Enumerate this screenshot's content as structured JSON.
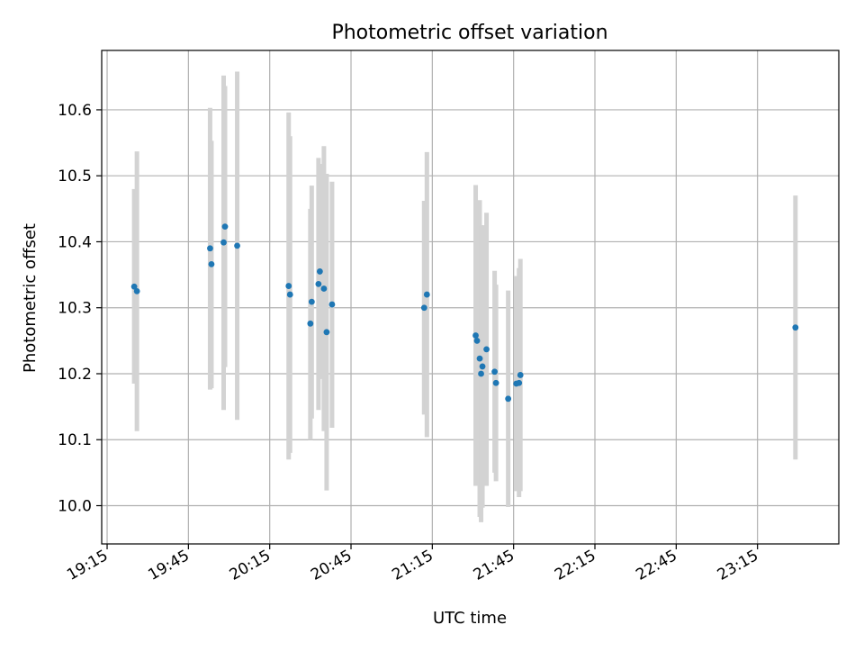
{
  "chart_data": {
    "type": "scatter",
    "title": "Photometric offset variation",
    "xlabel": "UTC time",
    "ylabel": "Photometric offset",
    "x_is_time": true,
    "xlim": [
      "19:13",
      "23:45"
    ],
    "ylim": [
      9.942,
      10.69
    ],
    "x_ticks": [
      "19:15",
      "19:45",
      "20:15",
      "20:45",
      "21:15",
      "21:45",
      "22:15",
      "22:45",
      "23:15"
    ],
    "y_ticks": [
      10.0,
      10.1,
      10.2,
      10.3,
      10.4,
      10.5,
      10.6
    ],
    "grid": true,
    "points": [
      {
        "x": "19:25",
        "y": 10.332,
        "err_low": 10.185,
        "err_high": 10.48
      },
      {
        "x": "19:26",
        "y": 10.325,
        "err_low": 10.113,
        "err_high": 10.537
      },
      {
        "x": "19:53",
        "y": 10.39,
        "err_low": 10.176,
        "err_high": 10.603
      },
      {
        "x": "19:53.5",
        "y": 10.366,
        "err_low": 10.178,
        "err_high": 10.553
      },
      {
        "x": "19:58",
        "y": 10.399,
        "err_low": 10.145,
        "err_high": 10.652
      },
      {
        "x": "19:58.5",
        "y": 10.423,
        "err_low": 10.21,
        "err_high": 10.636
      },
      {
        "x": "20:03",
        "y": 10.394,
        "err_low": 10.13,
        "err_high": 10.658
      },
      {
        "x": "20:22",
        "y": 10.333,
        "err_low": 10.07,
        "err_high": 10.596
      },
      {
        "x": "20:22.5",
        "y": 10.32,
        "err_low": 10.08,
        "err_high": 10.56
      },
      {
        "x": "20:30",
        "y": 10.276,
        "err_low": 10.1,
        "err_high": 10.45
      },
      {
        "x": "20:30.5",
        "y": 10.309,
        "err_low": 10.132,
        "err_high": 10.485
      },
      {
        "x": "20:33",
        "y": 10.336,
        "err_low": 10.145,
        "err_high": 10.527
      },
      {
        "x": "20:33.5",
        "y": 10.355,
        "err_low": 10.192,
        "err_high": 10.518
      },
      {
        "x": "20:35",
        "y": 10.329,
        "err_low": 10.113,
        "err_high": 10.545
      },
      {
        "x": "20:36",
        "y": 10.263,
        "err_low": 10.023,
        "err_high": 10.503
      },
      {
        "x": "20:38",
        "y": 10.305,
        "err_low": 10.118,
        "err_high": 10.491
      },
      {
        "x": "21:12",
        "y": 10.3,
        "err_low": 10.138,
        "err_high": 10.462
      },
      {
        "x": "21:13",
        "y": 10.32,
        "err_low": 10.104,
        "err_high": 10.536
      },
      {
        "x": "21:31",
        "y": 10.258,
        "err_low": 10.03,
        "err_high": 10.486
      },
      {
        "x": "21:31.5",
        "y": 10.25,
        "err_low": 10.065,
        "err_high": 10.435
      },
      {
        "x": "21:32.5",
        "y": 10.223,
        "err_low": 9.983,
        "err_high": 10.463
      },
      {
        "x": "21:33",
        "y": 10.2,
        "err_low": 9.975,
        "err_high": 10.425
      },
      {
        "x": "21:33.5",
        "y": 10.211,
        "err_low": 9.997,
        "err_high": 10.425
      },
      {
        "x": "21:35",
        "y": 10.237,
        "err_low": 10.03,
        "err_high": 10.444
      },
      {
        "x": "21:38",
        "y": 10.203,
        "err_low": 10.05,
        "err_high": 10.356
      },
      {
        "x": "21:38.5",
        "y": 10.186,
        "err_low": 10.037,
        "err_high": 10.335
      },
      {
        "x": "21:43",
        "y": 10.162,
        "err_low": 9.998,
        "err_high": 10.326
      },
      {
        "x": "21:46",
        "y": 10.185,
        "err_low": 10.022,
        "err_high": 10.348
      },
      {
        "x": "21:47",
        "y": 10.186,
        "err_low": 10.013,
        "err_high": 10.36
      },
      {
        "x": "21:47.5",
        "y": 10.198,
        "err_low": 10.022,
        "err_high": 10.374
      },
      {
        "x": "23:29",
        "y": 10.27,
        "err_low": 10.07,
        "err_high": 10.47
      }
    ],
    "colors": {
      "marker": "#1f77b4",
      "errorbar": "#d3d3d3",
      "grid": "#b0b0b0",
      "axes": "#000000"
    }
  }
}
